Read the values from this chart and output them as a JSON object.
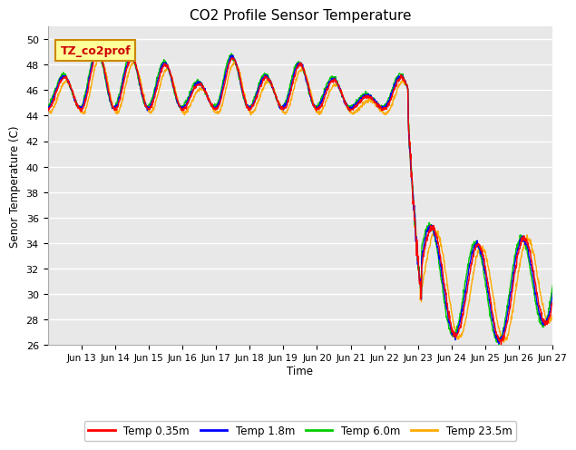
{
  "title": "CO2 Profile Sensor Temperature",
  "ylabel": "Senor Temperature (C)",
  "xlabel": "Time",
  "ylim": [
    26,
    51
  ],
  "yticks": [
    26,
    28,
    30,
    32,
    34,
    36,
    38,
    40,
    42,
    44,
    46,
    48,
    50
  ],
  "annotation_text": "TZ_co2prof",
  "bg_color": "#e8e8e8",
  "fig_color": "#ffffff",
  "legend_labels": [
    "Temp 0.35m",
    "Temp 1.8m",
    "Temp 6.0m",
    "Temp 23.5m"
  ],
  "legend_colors": [
    "#ff0000",
    "#0000ff",
    "#00cc00",
    "#ffaa00"
  ],
  "line_colors": [
    "#ff0000",
    "#0000ff",
    "#00cc00",
    "#ffaa00"
  ],
  "line_width": 1.0,
  "annotation_bg": "#ffff99",
  "annotation_border": "#cc8800",
  "grid_color": "#ffffff"
}
